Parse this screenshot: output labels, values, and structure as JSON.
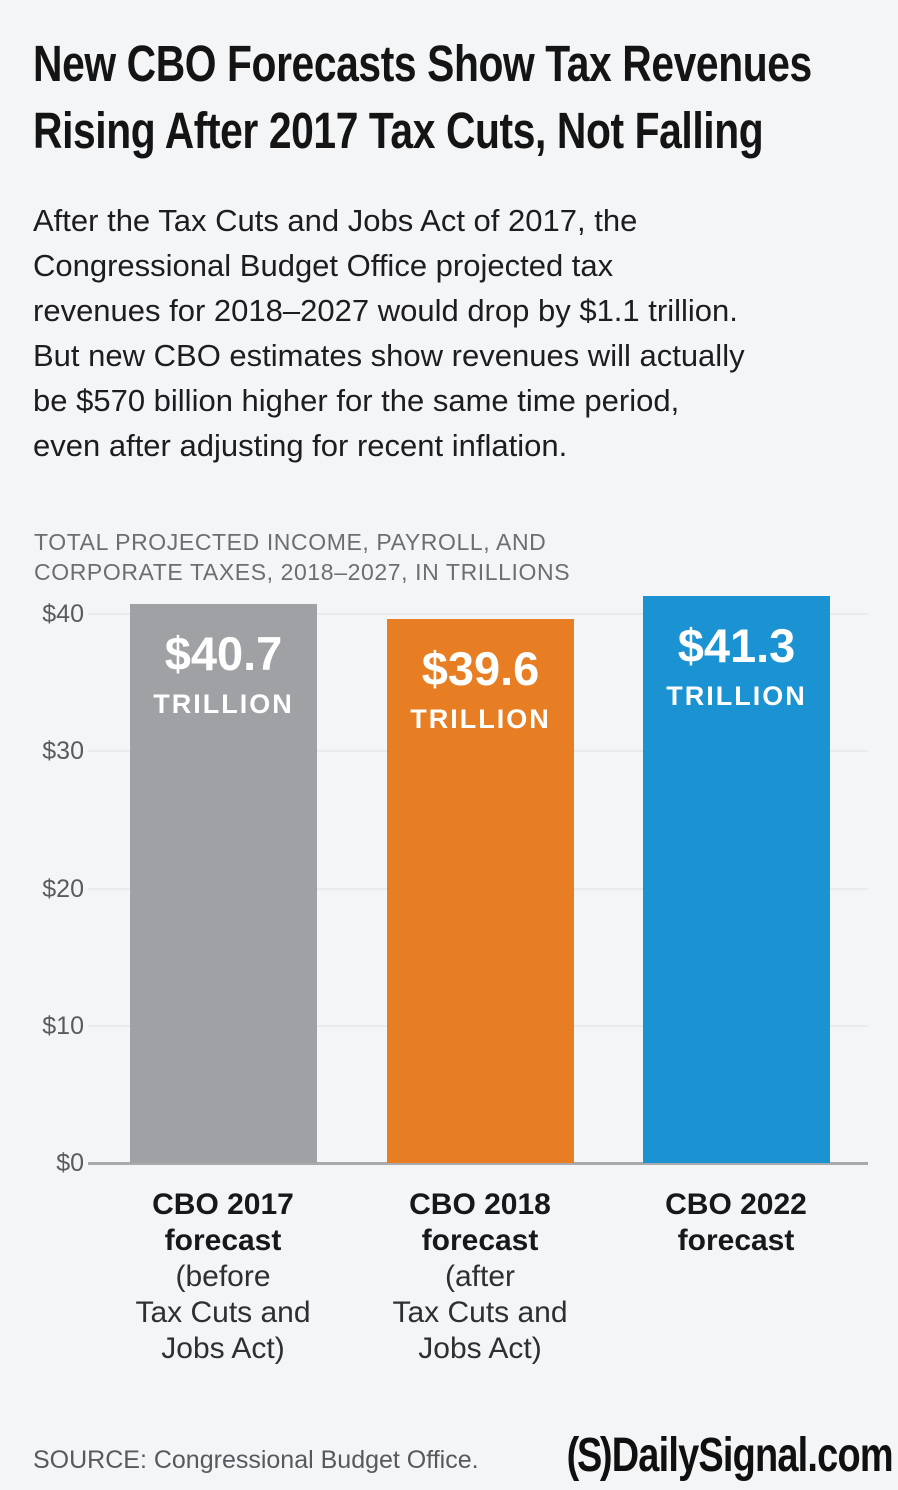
{
  "page": {
    "background": "#f4f5f6"
  },
  "title": {
    "lines": [
      "New CBO Forecasts Show Tax Revenues",
      "Rising After 2017 Tax Cuts, Not Falling"
    ]
  },
  "intro": {
    "lines": [
      "After the Tax Cuts and Jobs Act of 2017, the",
      "Congressional Budget Office projected tax",
      "revenues for 2018–2027 would drop by $1.1 trillion.",
      "But new CBO estimates show revenues will actually",
      "be $570 billion higher for the same time period,",
      "even after adjusting for recent inflation."
    ]
  },
  "chart": {
    "subtitle_lines": [
      "TOTAL PROJECTED INCOME, PAYROLL, AND",
      "CORPORATE TAXES, 2018–2027, IN TRILLIONS"
    ],
    "bars": [
      {
        "id": "cbo-2017-forecast",
        "value_label": "$40.7",
        "unit_label": "TRILLION",
        "color": "#9fa1a4",
        "label_bold_lines": [
          "CBO 2017",
          "forecast"
        ],
        "label_normal_lines": [
          "(before",
          "Tax Cuts and",
          "Jobs Act)"
        ]
      },
      {
        "id": "cbo-2018-forecast",
        "value_label": "$39.6",
        "unit_label": "TRILLION",
        "color": "#e87e23",
        "label_bold_lines": [
          "CBO 2018",
          "forecast"
        ],
        "label_normal_lines": [
          "(after",
          "Tax Cuts and",
          "Jobs Act)"
        ]
      },
      {
        "id": "cbo-2022-forecast",
        "value_label": "$41.3",
        "unit_label": "TRILLION",
        "color": "#1b92d1",
        "label_bold_lines": [
          "CBO 2022",
          "forecast"
        ],
        "label_normal_lines": []
      }
    ]
  },
  "chart_data": {
    "type": "bar",
    "title": "TOTAL PROJECTED INCOME, PAYROLL, AND CORPORATE TAXES, 2018–2027, IN TRILLIONS",
    "categories": [
      "CBO 2017 forecast (before Tax Cuts and Jobs Act)",
      "CBO 2018 forecast (after Tax Cuts and Jobs Act)",
      "CBO 2022 forecast"
    ],
    "values": [
      40.7,
      39.6,
      41.3
    ],
    "units": "trillions of US dollars",
    "bar_value_labels": [
      "$40.7 TRILLION",
      "$39.6 TRILLION",
      "$41.3 TRILLION"
    ],
    "colors": [
      "#9fa1a4",
      "#e87e23",
      "#1b92d1"
    ],
    "xlabel": "",
    "ylabel": "",
    "ylim": [
      0,
      41.5
    ],
    "yticks": [
      0,
      10,
      20,
      30,
      40
    ],
    "ytick_labels": [
      "$0",
      "$10",
      "$20",
      "$30",
      "$40"
    ],
    "grid": true,
    "legend": false
  },
  "footer": {
    "source": "SOURCE: Congressional Budget Office.",
    "logo_mark": "(S)",
    "logo_text": "DailySignal.com"
  }
}
